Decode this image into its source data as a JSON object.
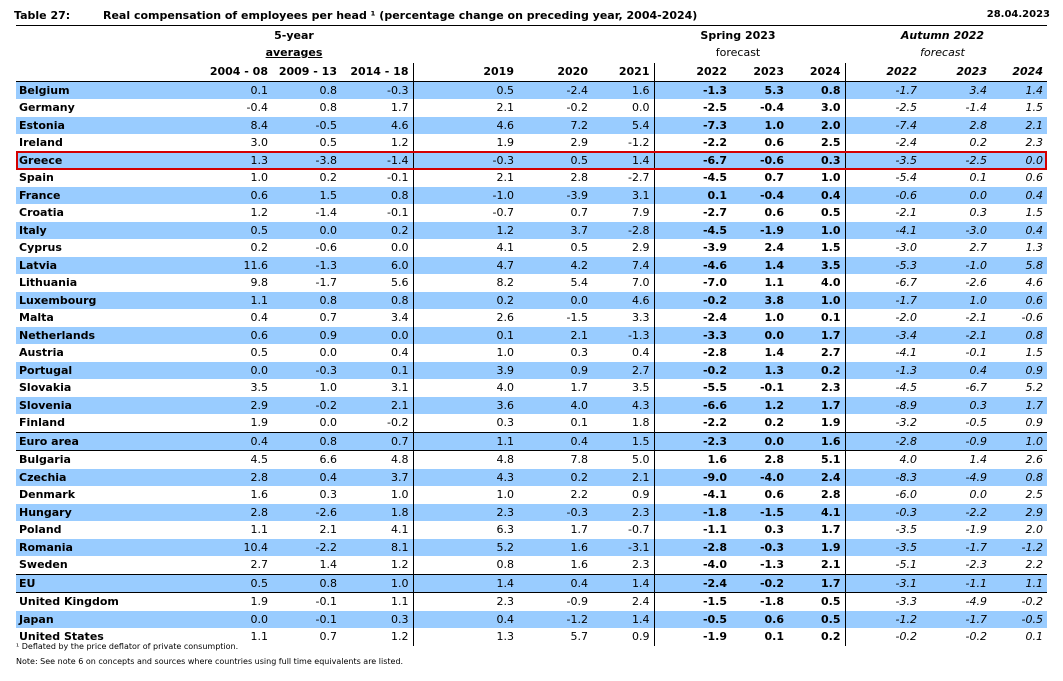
{
  "header": {
    "table_no": "Table 27:",
    "title": "Real compensation of employees per head ¹ (percentage change on preceding year, 2004-2024)",
    "date": "28.04.2023"
  },
  "groups": {
    "five_year_l1": "5-year",
    "five_year_l2": "averages",
    "spring_l1": "Spring 2023",
    "spring_l2": "forecast",
    "autumn_l1": "Autumn 2022",
    "autumn_l2": "forecast"
  },
  "columns": [
    "2004 - 08",
    "2009 - 13",
    "2014 - 18",
    "2019",
    "2020",
    "2021",
    "2022",
    "2023",
    "2024",
    "2022",
    "2023",
    "2024"
  ],
  "rows": [
    {
      "country": "Belgium",
      "v": [
        "0.1",
        "0.8",
        "-0.3",
        "0.5",
        "-2.4",
        "1.6",
        "-1.3",
        "5.3",
        "0.8",
        "-1.7",
        "3.4",
        "1.4"
      ]
    },
    {
      "country": "Germany",
      "v": [
        "-0.4",
        "0.8",
        "1.7",
        "2.1",
        "-0.2",
        "0.0",
        "-2.5",
        "-0.4",
        "3.0",
        "-2.5",
        "-1.4",
        "1.5"
      ]
    },
    {
      "country": "Estonia",
      "v": [
        "8.4",
        "-0.5",
        "4.6",
        "4.6",
        "7.2",
        "5.4",
        "-7.3",
        "1.0",
        "2.0",
        "-7.4",
        "2.8",
        "2.1"
      ]
    },
    {
      "country": "Ireland",
      "v": [
        "3.0",
        "0.5",
        "1.2",
        "1.9",
        "2.9",
        "-1.2",
        "-2.2",
        "0.6",
        "2.5",
        "-2.4",
        "0.2",
        "2.3"
      ]
    },
    {
      "country": "Greece",
      "v": [
        "1.3",
        "-3.8",
        "-1.4",
        "-0.3",
        "0.5",
        "1.4",
        "-6.7",
        "-0.6",
        "0.3",
        "-3.5",
        "-2.5",
        "0.0"
      ]
    },
    {
      "country": "Spain",
      "v": [
        "1.0",
        "0.2",
        "-0.1",
        "2.1",
        "2.8",
        "-2.7",
        "-4.5",
        "0.7",
        "1.0",
        "-5.4",
        "0.1",
        "0.6"
      ]
    },
    {
      "country": "France",
      "v": [
        "0.6",
        "1.5",
        "0.8",
        "-1.0",
        "-3.9",
        "3.1",
        "0.1",
        "-0.4",
        "0.4",
        "-0.6",
        "0.0",
        "0.4"
      ]
    },
    {
      "country": "Croatia",
      "v": [
        "1.2",
        "-1.4",
        "-0.1",
        "-0.7",
        "0.7",
        "7.9",
        "-2.7",
        "0.6",
        "0.5",
        "-2.1",
        "0.3",
        "1.5"
      ]
    },
    {
      "country": "Italy",
      "v": [
        "0.5",
        "0.0",
        "0.2",
        "1.2",
        "3.7",
        "-2.8",
        "-4.5",
        "-1.9",
        "1.0",
        "-4.1",
        "-3.0",
        "0.4"
      ]
    },
    {
      "country": "Cyprus",
      "v": [
        "0.2",
        "-0.6",
        "0.0",
        "4.1",
        "0.5",
        "2.9",
        "-3.9",
        "2.4",
        "1.5",
        "-3.0",
        "2.7",
        "1.3"
      ]
    },
    {
      "country": "Latvia",
      "v": [
        "11.6",
        "-1.3",
        "6.0",
        "4.7",
        "4.2",
        "7.4",
        "-4.6",
        "1.4",
        "3.5",
        "-5.3",
        "-1.0",
        "5.8"
      ]
    },
    {
      "country": "Lithuania",
      "v": [
        "9.8",
        "-1.7",
        "5.6",
        "8.2",
        "5.4",
        "7.0",
        "-7.0",
        "1.1",
        "4.0",
        "-6.7",
        "-2.6",
        "4.6"
      ]
    },
    {
      "country": "Luxembourg",
      "v": [
        "1.1",
        "0.8",
        "0.8",
        "0.2",
        "0.0",
        "4.6",
        "-0.2",
        "3.8",
        "1.0",
        "-1.7",
        "1.0",
        "0.6"
      ]
    },
    {
      "country": "Malta",
      "v": [
        "0.4",
        "0.7",
        "3.4",
        "2.6",
        "-1.5",
        "3.3",
        "-2.4",
        "1.0",
        "0.1",
        "-2.0",
        "-2.1",
        "-0.6"
      ]
    },
    {
      "country": "Netherlands",
      "v": [
        "0.6",
        "0.9",
        "0.0",
        "0.1",
        "2.1",
        "-1.3",
        "-3.3",
        "0.0",
        "1.7",
        "-3.4",
        "-2.1",
        "0.8"
      ]
    },
    {
      "country": "Austria",
      "v": [
        "0.5",
        "0.0",
        "0.4",
        "1.0",
        "0.3",
        "0.4",
        "-2.8",
        "1.4",
        "2.7",
        "-4.1",
        "-0.1",
        "1.5"
      ]
    },
    {
      "country": "Portugal",
      "v": [
        "0.0",
        "-0.3",
        "0.1",
        "3.9",
        "0.9",
        "2.7",
        "-0.2",
        "1.3",
        "0.2",
        "-1.3",
        "0.4",
        "0.9"
      ]
    },
    {
      "country": "Slovakia",
      "v": [
        "3.5",
        "1.0",
        "3.1",
        "4.0",
        "1.7",
        "3.5",
        "-5.5",
        "-0.1",
        "2.3",
        "-4.5",
        "-6.7",
        "5.2"
      ]
    },
    {
      "country": "Slovenia",
      "v": [
        "2.9",
        "-0.2",
        "2.1",
        "3.6",
        "4.0",
        "4.3",
        "-6.6",
        "1.2",
        "1.7",
        "-8.9",
        "0.3",
        "1.7"
      ]
    },
    {
      "country": "Finland",
      "v": [
        "1.9",
        "0.0",
        "-0.2",
        "0.3",
        "0.1",
        "1.8",
        "-2.2",
        "0.2",
        "1.9",
        "-3.2",
        "-0.5",
        "0.9"
      ]
    },
    {
      "country": "Euro area",
      "agg": true,
      "v": [
        "0.4",
        "0.8",
        "0.7",
        "1.1",
        "0.4",
        "1.5",
        "-2.3",
        "0.0",
        "1.6",
        "-2.8",
        "-0.9",
        "1.0"
      ]
    },
    {
      "country": "Bulgaria",
      "v": [
        "4.5",
        "6.6",
        "4.8",
        "4.8",
        "7.8",
        "5.0",
        "1.6",
        "2.8",
        "5.1",
        "4.0",
        "1.4",
        "2.6"
      ]
    },
    {
      "country": "Czechia",
      "v": [
        "2.8",
        "0.4",
        "3.7",
        "4.3",
        "0.2",
        "2.1",
        "-9.0",
        "-4.0",
        "2.4",
        "-8.3",
        "-4.9",
        "0.8"
      ]
    },
    {
      "country": "Denmark",
      "v": [
        "1.6",
        "0.3",
        "1.0",
        "1.0",
        "2.2",
        "0.9",
        "-4.1",
        "0.6",
        "2.8",
        "-6.0",
        "0.0",
        "2.5"
      ]
    },
    {
      "country": "Hungary",
      "v": [
        "2.8",
        "-2.6",
        "1.8",
        "2.3",
        "-0.3",
        "2.3",
        "-1.8",
        "-1.5",
        "4.1",
        "-0.3",
        "-2.2",
        "2.9"
      ]
    },
    {
      "country": "Poland",
      "v": [
        "1.1",
        "2.1",
        "4.1",
        "6.3",
        "1.7",
        "-0.7",
        "-1.1",
        "0.3",
        "1.7",
        "-3.5",
        "-1.9",
        "2.0"
      ]
    },
    {
      "country": "Romania",
      "v": [
        "10.4",
        "-2.2",
        "8.1",
        "5.2",
        "1.6",
        "-3.1",
        "-2.8",
        "-0.3",
        "1.9",
        "-3.5",
        "-1.7",
        "-1.2"
      ]
    },
    {
      "country": "Sweden",
      "v": [
        "2.7",
        "1.4",
        "1.2",
        "0.8",
        "1.6",
        "2.3",
        "-4.0",
        "-1.3",
        "2.1",
        "-5.1",
        "-2.3",
        "2.2"
      ]
    },
    {
      "country": "EU",
      "agg": true,
      "v": [
        "0.5",
        "0.8",
        "1.0",
        "1.4",
        "0.4",
        "1.4",
        "-2.4",
        "-0.2",
        "1.7",
        "-3.1",
        "-1.1",
        "1.1"
      ]
    },
    {
      "country": "United Kingdom",
      "v": [
        "1.9",
        "-0.1",
        "1.1",
        "2.3",
        "-0.9",
        "2.4",
        "-1.5",
        "-1.8",
        "0.5",
        "-3.3",
        "-4.9",
        "-0.2"
      ]
    },
    {
      "country": "Japan",
      "v": [
        "0.0",
        "-0.1",
        "0.3",
        "0.4",
        "-1.2",
        "1.4",
        "-0.5",
        "0.6",
        "0.5",
        "-1.2",
        "-1.7",
        "-0.5"
      ]
    },
    {
      "country": "United States",
      "v": [
        "1.1",
        "0.7",
        "1.2",
        "1.3",
        "5.7",
        "0.9",
        "-1.9",
        "0.1",
        "0.2",
        "-0.2",
        "-0.2",
        "0.1"
      ]
    }
  ],
  "highlight": {
    "country": "Greece",
    "color": "#d40000"
  },
  "colors": {
    "row_shade": "#99ccff"
  },
  "footnotes": {
    "f1": "¹ Deflated by the price deflator of private consumption.",
    "note": "Note: See note 6 on concepts and sources where countries using full time equivalents are listed."
  }
}
